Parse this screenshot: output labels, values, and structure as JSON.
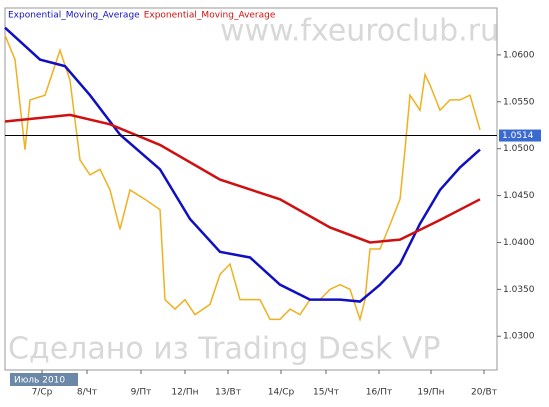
{
  "chart_data": {
    "type": "line",
    "watermark_top": "www.fxeuroclub.ru",
    "watermark_bottom": "Сделано из Trading Desk VP",
    "period_label": "Июль 2010",
    "xlim": [
      0,
      492
    ],
    "ylim": [
      1.0264,
      1.065
    ],
    "xticks": [
      {
        "value": 37,
        "label": "7/Ср"
      },
      {
        "value": 82,
        "label": "8/Чт"
      },
      {
        "value": 136,
        "label": "9/Пт"
      },
      {
        "value": 180,
        "label": "12/Пн"
      },
      {
        "value": 223,
        "label": "13/Вт"
      },
      {
        "value": 276,
        "label": "14/Ср"
      },
      {
        "value": 321,
        "label": "15/Чт"
      },
      {
        "value": 374,
        "label": "16/Пт"
      },
      {
        "value": 426,
        "label": "19/Пн"
      },
      {
        "value": 479,
        "label": "20/Вт"
      }
    ],
    "yticks": [
      {
        "value": 1.06,
        "label": "1.0600"
      },
      {
        "value": 1.055,
        "label": "1.0550"
      },
      {
        "value": 1.05,
        "label": "1.0500"
      },
      {
        "value": 1.045,
        "label": "1.0450"
      },
      {
        "value": 1.04,
        "label": "1.0400"
      },
      {
        "value": 1.035,
        "label": "1.0350"
      },
      {
        "value": 1.03,
        "label": "1.0300"
      }
    ],
    "current_price": 1.0514,
    "series": [
      {
        "color": "#f0b020",
        "x": [
          0,
          10,
          20,
          25,
          40,
          55,
          65,
          75,
          85,
          95,
          105,
          115,
          125,
          140,
          155,
          160,
          170,
          180,
          190,
          205,
          215,
          225,
          235,
          245,
          255,
          265,
          275,
          285,
          295,
          305,
          315,
          325,
          335,
          345,
          355,
          360,
          365,
          375,
          385,
          395,
          400,
          405,
          415,
          420,
          425,
          435,
          445,
          455,
          465,
          475
        ],
        "values": [
          1.0621,
          1.0595,
          1.0499,
          1.0552,
          1.0557,
          1.0605,
          1.0573,
          1.0488,
          1.0472,
          1.0478,
          1.0456,
          1.0414,
          1.0456,
          1.0446,
          1.0435,
          1.0339,
          1.0329,
          1.0339,
          1.0323,
          1.0334,
          1.0366,
          1.0377,
          1.0339,
          1.0339,
          1.0339,
          1.0318,
          1.0318,
          1.0329,
          1.0323,
          1.0339,
          1.0339,
          1.035,
          1.0355,
          1.035,
          1.0318,
          1.0339,
          1.0393,
          1.0393,
          1.0419,
          1.0446,
          1.0499,
          1.0557,
          1.0541,
          1.0579,
          1.0568,
          1.0541,
          1.0552,
          1.0552,
          1.0557,
          1.052
        ]
      },
      {
        "name": "Exponential_Moving_Average",
        "color": "#1010c0",
        "x": [
          0,
          35,
          60,
          85,
          115,
          155,
          185,
          215,
          245,
          275,
          305,
          335,
          355,
          375,
          395,
          415,
          435,
          455,
          475
        ],
        "values": [
          1.0629,
          1.0595,
          1.0588,
          1.0557,
          1.0515,
          1.0478,
          1.0425,
          1.039,
          1.0384,
          1.0355,
          1.0339,
          1.0339,
          1.0337,
          1.0355,
          1.0377,
          1.042,
          1.0456,
          1.048,
          1.0499
        ]
      },
      {
        "name": "Exponential_Moving_Average",
        "color": "#d01010",
        "x": [
          0,
          65,
          105,
          155,
          215,
          275,
          325,
          365,
          395,
          435,
          475
        ],
        "values": [
          1.0529,
          1.0536,
          1.0526,
          1.0504,
          1.0467,
          1.0446,
          1.0416,
          1.04,
          1.0403,
          1.0424,
          1.0446
        ]
      }
    ]
  }
}
